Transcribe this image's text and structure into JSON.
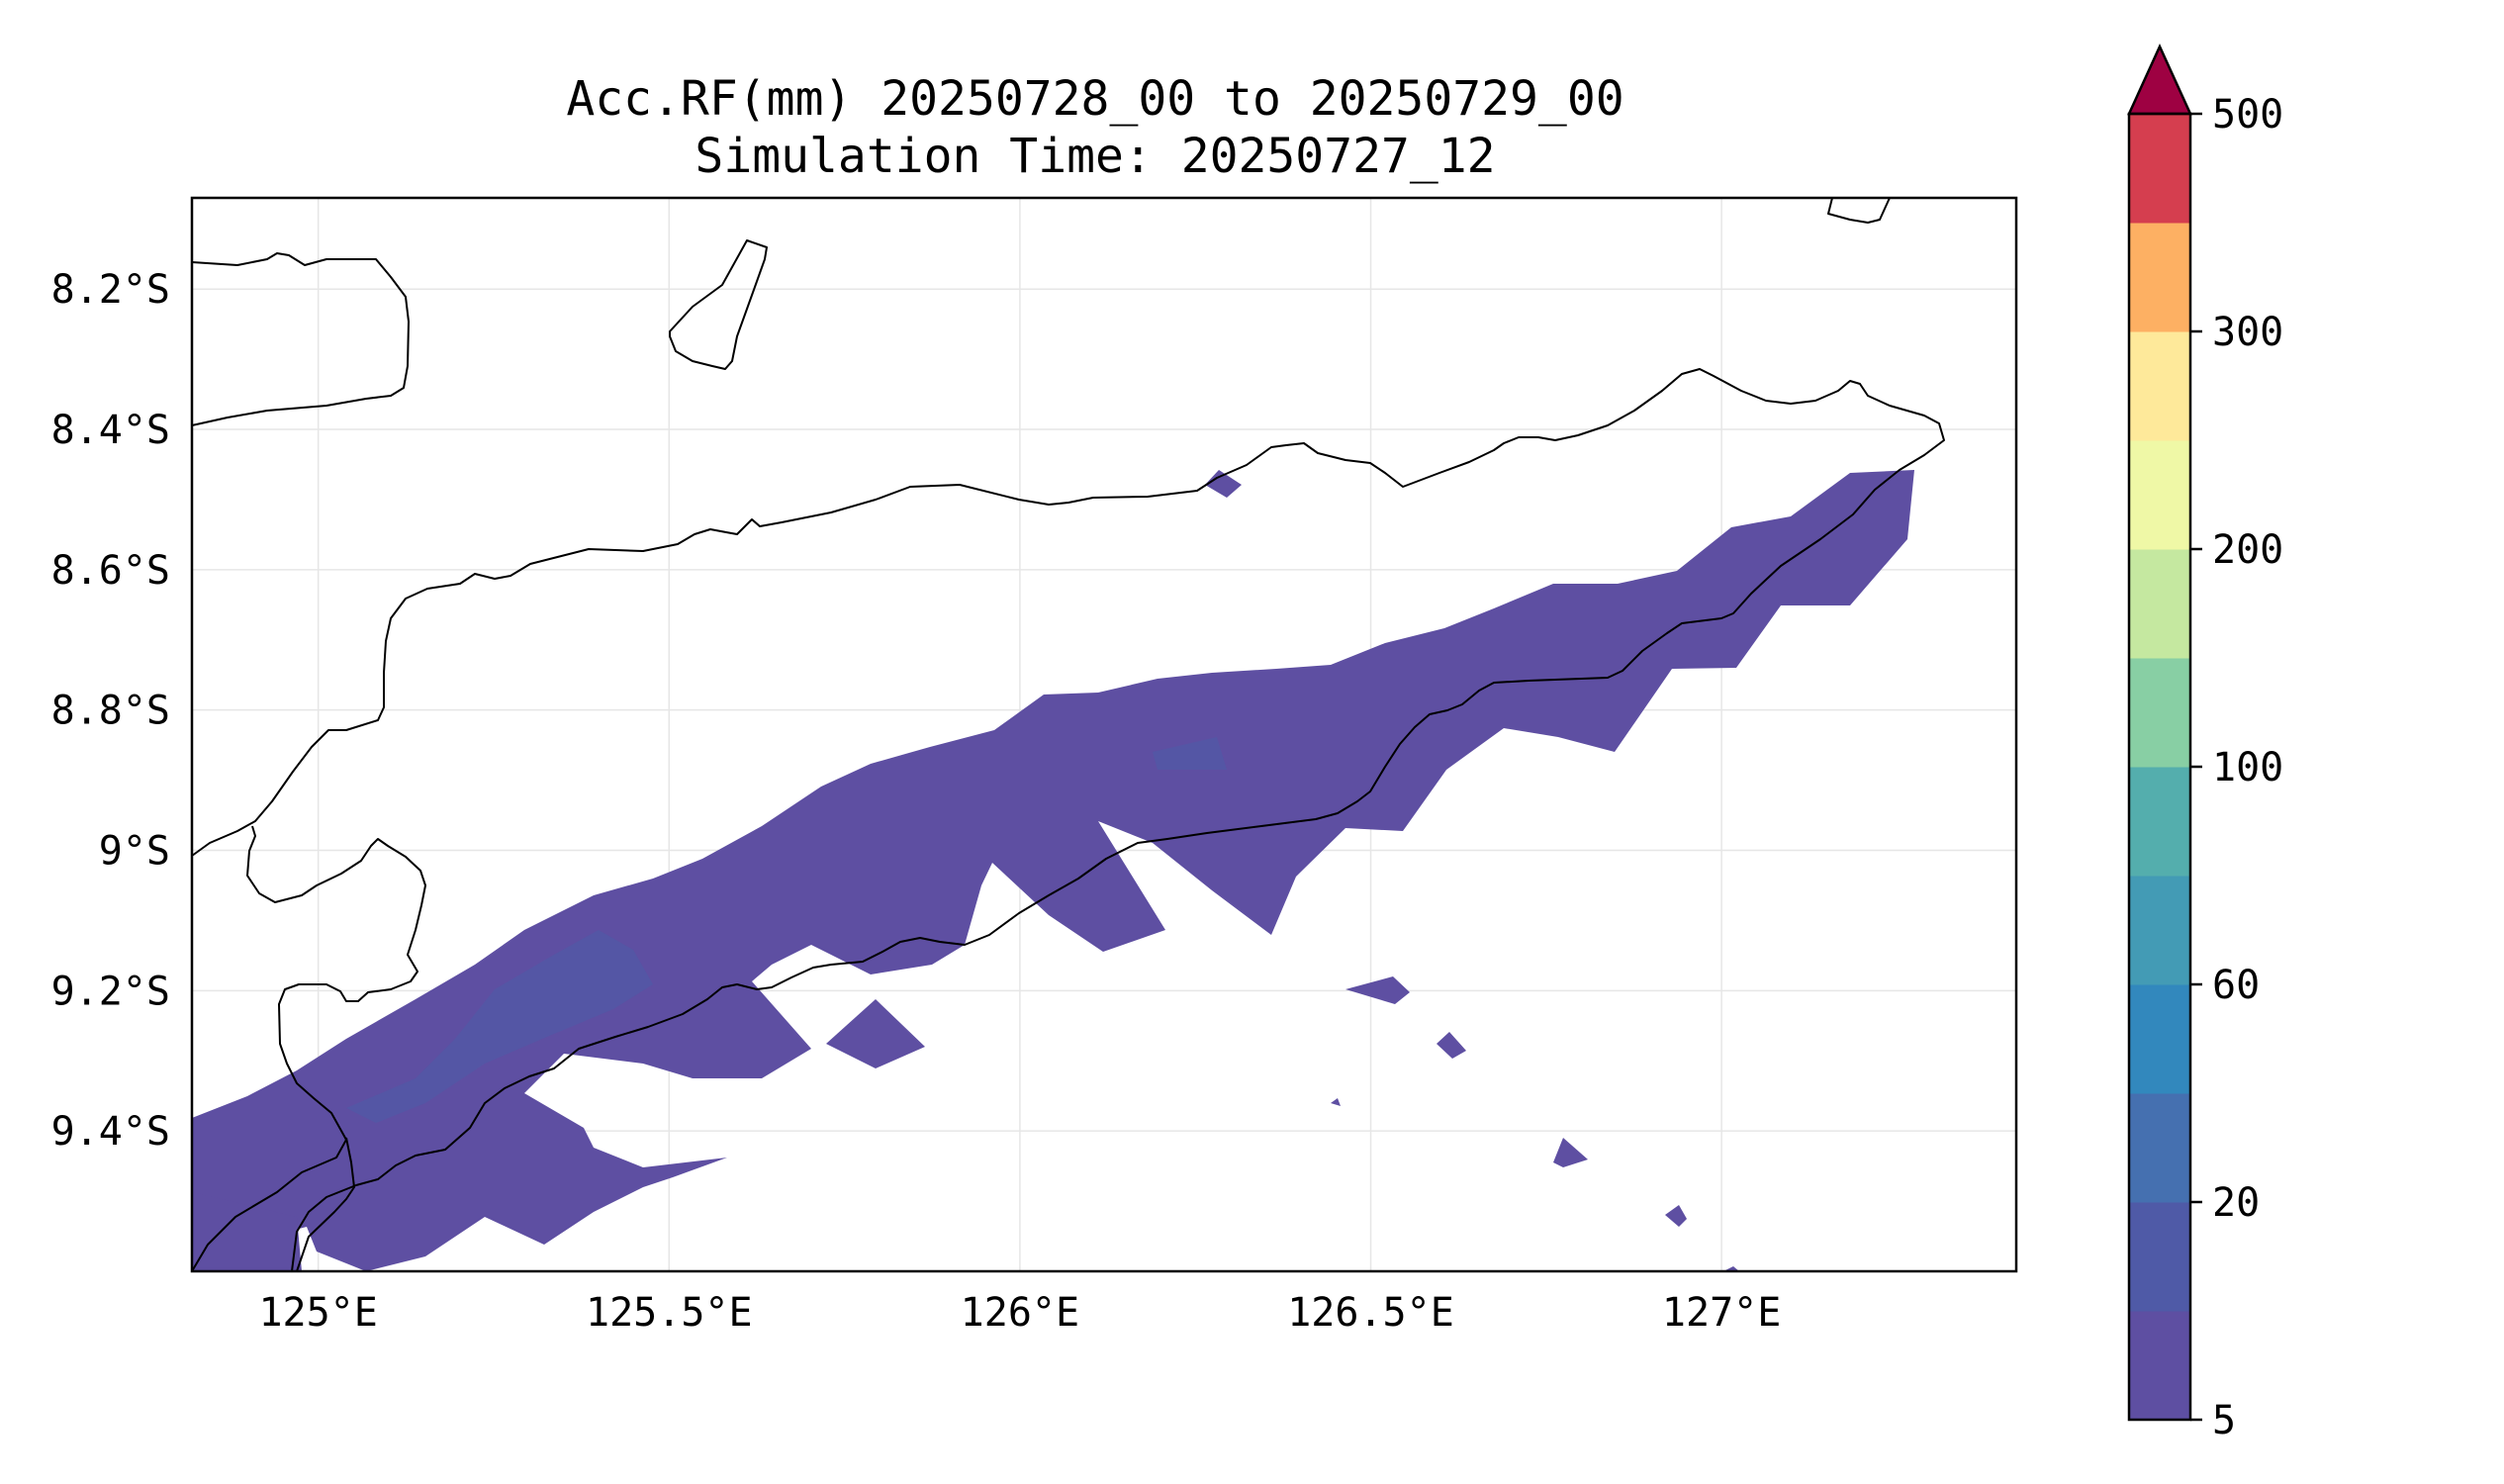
{
  "title": {
    "line1": "Acc.RF(mm) 20250728_00 to 20250729_00",
    "line2": "Simulation Time: 20250727_12"
  },
  "map": {
    "lon_range": [
      124.82,
      127.42
    ],
    "lat_range": [
      -9.6,
      -8.07
    ],
    "lon_ticks": [
      {
        "value": 125.0,
        "label": "125°E"
      },
      {
        "value": 125.5,
        "label": "125.5°E"
      },
      {
        "value": 126.0,
        "label": "126°E"
      },
      {
        "value": 126.5,
        "label": "126.5°E"
      },
      {
        "value": 127.0,
        "label": "127°E"
      }
    ],
    "lat_ticks": [
      {
        "value": -8.2,
        "label": "8.2°S"
      },
      {
        "value": -8.4,
        "label": "8.4°S"
      },
      {
        "value": -8.6,
        "label": "8.6°S"
      },
      {
        "value": -8.8,
        "label": "8.8°S"
      },
      {
        "value": -9.0,
        "label": "9°S"
      },
      {
        "value": -9.2,
        "label": "9.2°S"
      },
      {
        "value": -9.4,
        "label": "9.4°S"
      }
    ],
    "gridlines": true,
    "coastline_color": "#000000",
    "rain_color_main": "#5e4fa2",
    "rain_color_inner": "#4d5ea8"
  },
  "colorbar": {
    "extend": "max",
    "levels": [
      5,
      10,
      20,
      40,
      60,
      80,
      100,
      150,
      200,
      250,
      300,
      400,
      500
    ],
    "tick_labels": [
      "5",
      "20",
      "60",
      "100",
      "200",
      "300",
      "500"
    ],
    "colors": [
      "#5e4fa2",
      "#4f5aa7",
      "#4570b0",
      "#3288bd",
      "#439bb5",
      "#54aead",
      "#88cfa4",
      "#c5e8a0",
      "#eff8a6",
      "#fee99a",
      "#fdb063",
      "#d53e4f"
    ],
    "extend_color": "#9e0142"
  }
}
